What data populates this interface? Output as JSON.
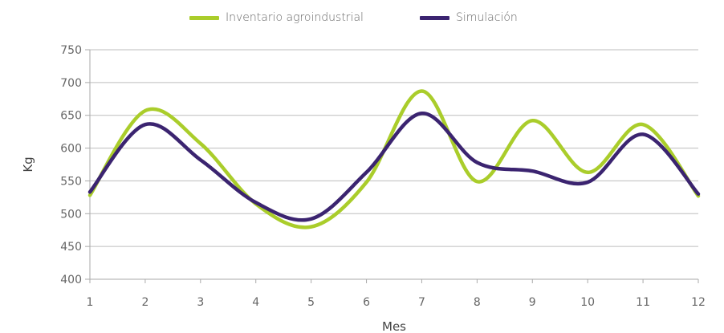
{
  "chart_data": {
    "type": "line",
    "title": "",
    "xlabel": "Mes",
    "ylabel": "Kg",
    "x": [
      1,
      2,
      3,
      4,
      5,
      6,
      7,
      8,
      9,
      10,
      11,
      12
    ],
    "xticks": [
      "1",
      "2",
      "3",
      "4",
      "5",
      "6",
      "7",
      "8",
      "9",
      "10",
      "11",
      "12"
    ],
    "ylim": [
      400,
      750
    ],
    "yticks": [
      "400",
      "450",
      "500",
      "550",
      "600",
      "650",
      "700",
      "750"
    ],
    "grid": true,
    "legend": "top-center",
    "smooth": true,
    "series": [
      {
        "name": "Inventario agroindustrial",
        "color": "#aacd2b",
        "values": [
          528,
          657,
          607,
          515,
          480,
          548,
          687,
          549,
          642,
          563,
          636,
          527
        ]
      },
      {
        "name": "Simulación",
        "color": "#3b2470",
        "values": [
          533,
          636,
          582,
          517,
          492,
          563,
          653,
          578,
          565,
          548,
          621,
          530
        ]
      }
    ]
  }
}
